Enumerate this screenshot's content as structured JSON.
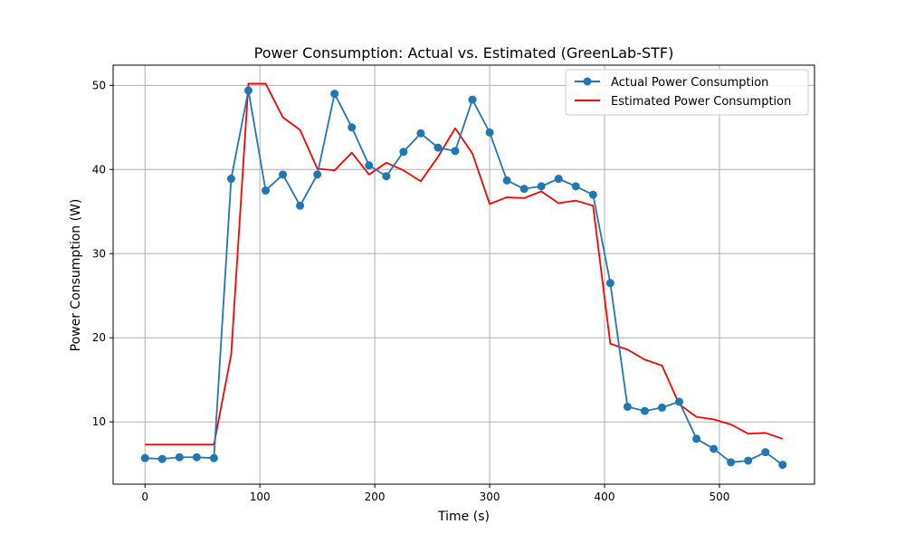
{
  "chart_data": {
    "type": "line",
    "title": "Power Consumption: Actual vs. Estimated (GreenLab-STF)",
    "xlabel": "Time (s)",
    "ylabel": "Power Consumption (W)",
    "xlim": [
      -27.75,
      582.75
    ],
    "ylim": [
      2.6,
      52.4
    ],
    "xticks": [
      0,
      100,
      200,
      300,
      400,
      500
    ],
    "yticks": [
      10,
      20,
      30,
      40,
      50
    ],
    "xtick_labels": [
      "0",
      "100",
      "200",
      "300",
      "400",
      "500"
    ],
    "ytick_labels": [
      "10",
      "20",
      "30",
      "40",
      "50"
    ],
    "grid": true,
    "legend_position": "upper-right",
    "x": [
      0,
      15,
      30,
      45,
      60,
      75,
      90,
      105,
      120,
      135,
      150,
      165,
      180,
      195,
      210,
      225,
      240,
      255,
      270,
      285,
      300,
      315,
      330,
      345,
      360,
      375,
      390,
      405,
      420,
      435,
      450,
      465,
      480,
      495,
      510,
      525,
      540,
      555
    ],
    "series": [
      {
        "name": "Actual Power Consumption",
        "color": "#1f77b4",
        "marker": "circle",
        "values": [
          5.7,
          5.6,
          5.8,
          5.8,
          5.7,
          38.9,
          49.4,
          37.5,
          39.4,
          35.7,
          39.4,
          49.0,
          45.0,
          40.5,
          39.2,
          42.1,
          44.3,
          42.6,
          42.2,
          48.3,
          44.4,
          38.7,
          37.7,
          38.0,
          38.9,
          38.0,
          37.0,
          26.5,
          11.8,
          11.3,
          11.7,
          12.4,
          8.0,
          6.8,
          5.2,
          5.4,
          6.4,
          4.9
        ]
      },
      {
        "name": "Estimated Power Consumption",
        "color": "#ff0000",
        "marker": "none",
        "values": [
          7.3,
          7.3,
          7.3,
          7.3,
          7.3,
          18.0,
          50.2,
          50.2,
          46.2,
          44.7,
          40.1,
          39.9,
          42.0,
          39.4,
          40.8,
          39.9,
          38.6,
          41.5,
          44.9,
          41.9,
          35.9,
          36.7,
          36.6,
          37.4,
          36.0,
          36.3,
          35.7,
          19.3,
          18.6,
          17.4,
          16.7,
          12.1,
          10.6,
          10.3,
          9.7,
          8.6,
          8.7,
          8.0
        ]
      }
    ]
  }
}
